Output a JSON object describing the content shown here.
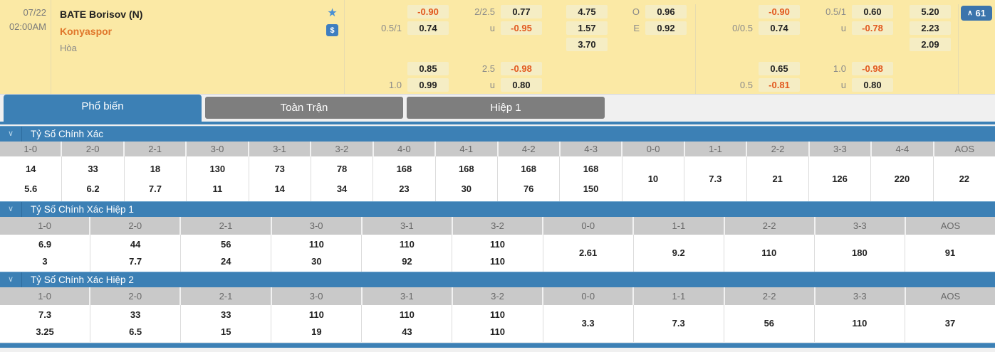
{
  "match": {
    "date": "07/22",
    "time": "02:00AM",
    "home_team": "BATE Borisov (N)",
    "away_team": "Konyaspor",
    "draw_label": "Hòa",
    "badge": {
      "arrow": "∧",
      "count": "61"
    },
    "dollar_symbol": "$",
    "star_symbol": "★",
    "odds_groups": [
      {
        "name": "handicap-full",
        "rows": [
          {
            "label": "",
            "value": "-0.90",
            "neg": true
          },
          {
            "label": "0.5/1",
            "value": "0.74"
          },
          null,
          {
            "label": "",
            "value": "0.85"
          },
          {
            "label": "1.0",
            "value": "0.99"
          }
        ]
      },
      {
        "name": "overunder-full",
        "rows": [
          {
            "label": "2/2.5",
            "value": "0.77"
          },
          {
            "label": "u",
            "value": "-0.95",
            "neg": true
          },
          null,
          {
            "label": "2.5",
            "value": "-0.98",
            "neg": true
          },
          {
            "label": "u",
            "value": "0.80"
          }
        ]
      },
      {
        "name": "1x2-full",
        "rows": [
          {
            "label": "",
            "value": "4.75"
          },
          {
            "label": "",
            "value": "1.57"
          },
          {
            "label": "",
            "value": "3.70"
          },
          null,
          null
        ]
      },
      {
        "name": "odd-even",
        "divider_after": true,
        "rows": [
          {
            "label": "O",
            "value": "0.96"
          },
          {
            "label": "E",
            "value": "0.92"
          },
          null,
          null,
          null
        ]
      },
      {
        "name": "handicap-second",
        "rows": [
          {
            "label": "",
            "value": "-0.90",
            "neg": true
          },
          {
            "label": "0/0.5",
            "value": "0.74"
          },
          null,
          {
            "label": "",
            "value": "0.65"
          },
          {
            "label": "0.5",
            "value": "-0.81",
            "neg": true
          }
        ]
      },
      {
        "name": "overunder-second",
        "rows": [
          {
            "label": "0.5/1",
            "value": "0.60"
          },
          {
            "label": "u",
            "value": "-0.78",
            "neg": true
          },
          null,
          {
            "label": "1.0",
            "value": "-0.98",
            "neg": true
          },
          {
            "label": "u",
            "value": "0.80"
          }
        ]
      },
      {
        "name": "1x2-second",
        "divider_after": true,
        "rows": [
          {
            "label": "",
            "value": "5.20"
          },
          {
            "label": "",
            "value": "2.23"
          },
          {
            "label": "",
            "value": "2.09"
          },
          null,
          null
        ]
      }
    ]
  },
  "tabs": [
    {
      "label": "Phổ biến",
      "active": true
    },
    {
      "label": "Toàn Trận",
      "active": false
    },
    {
      "label": "Hiệp 1",
      "active": false
    }
  ],
  "sections": [
    {
      "title": "Tỷ Số Chính Xác",
      "columns": [
        {
          "label": "1-0",
          "values": [
            "14",
            "5.6"
          ]
        },
        {
          "label": "2-0",
          "values": [
            "33",
            "6.2"
          ]
        },
        {
          "label": "2-1",
          "values": [
            "18",
            "7.7"
          ]
        },
        {
          "label": "3-0",
          "values": [
            "130",
            "11"
          ]
        },
        {
          "label": "3-1",
          "values": [
            "73",
            "14"
          ]
        },
        {
          "label": "3-2",
          "values": [
            "78",
            "34"
          ]
        },
        {
          "label": "4-0",
          "values": [
            "168",
            "23"
          ]
        },
        {
          "label": "4-1",
          "values": [
            "168",
            "30"
          ]
        },
        {
          "label": "4-2",
          "values": [
            "168",
            "76"
          ]
        },
        {
          "label": "4-3",
          "values": [
            "168",
            "150"
          ]
        },
        {
          "label": "0-0",
          "values": [
            "10"
          ]
        },
        {
          "label": "1-1",
          "values": [
            "7.3"
          ]
        },
        {
          "label": "2-2",
          "values": [
            "21"
          ]
        },
        {
          "label": "3-3",
          "values": [
            "126"
          ]
        },
        {
          "label": "4-4",
          "values": [
            "220"
          ]
        },
        {
          "label": "AOS",
          "values": [
            "22"
          ]
        }
      ]
    },
    {
      "title": "Tỷ Số Chính Xác Hiệp 1",
      "columns": [
        {
          "label": "1-0",
          "values": [
            "6.9",
            "3"
          ]
        },
        {
          "label": "2-0",
          "values": [
            "44",
            "7.7"
          ]
        },
        {
          "label": "2-1",
          "values": [
            "56",
            "24"
          ]
        },
        {
          "label": "3-0",
          "values": [
            "110",
            "30"
          ]
        },
        {
          "label": "3-1",
          "values": [
            "110",
            "92"
          ]
        },
        {
          "label": "3-2",
          "values": [
            "110",
            "110"
          ]
        },
        {
          "label": "0-0",
          "values": [
            "2.61"
          ]
        },
        {
          "label": "1-1",
          "values": [
            "9.2"
          ]
        },
        {
          "label": "2-2",
          "values": [
            "110"
          ]
        },
        {
          "label": "3-3",
          "values": [
            "180"
          ]
        },
        {
          "label": "AOS",
          "values": [
            "91"
          ]
        }
      ]
    },
    {
      "title": "Tỷ Số Chính Xác Hiệp 2",
      "columns": [
        {
          "label": "1-0",
          "values": [
            "7.3",
            "3.25"
          ]
        },
        {
          "label": "2-0",
          "values": [
            "33",
            "6.5"
          ]
        },
        {
          "label": "2-1",
          "values": [
            "33",
            "15"
          ]
        },
        {
          "label": "3-0",
          "values": [
            "110",
            "19"
          ]
        },
        {
          "label": "3-1",
          "values": [
            "110",
            "43"
          ]
        },
        {
          "label": "3-2",
          "values": [
            "110",
            "110"
          ]
        },
        {
          "label": "0-0",
          "values": [
            "3.3"
          ]
        },
        {
          "label": "1-1",
          "values": [
            "7.3"
          ]
        },
        {
          "label": "2-2",
          "values": [
            "56"
          ]
        },
        {
          "label": "3-3",
          "values": [
            "110"
          ]
        },
        {
          "label": "AOS",
          "values": [
            "37"
          ]
        }
      ]
    }
  ],
  "colors": {
    "row_bg": "#FBE9A5",
    "odds_cell_bg": "#F5EDC4",
    "negative_odds": "#E2581E",
    "accent_blue": "#3C80B5",
    "inactive_tab": "#7E7E7E",
    "away_team_orange": "#E0762A",
    "badge_blue": "#3B74AC"
  }
}
